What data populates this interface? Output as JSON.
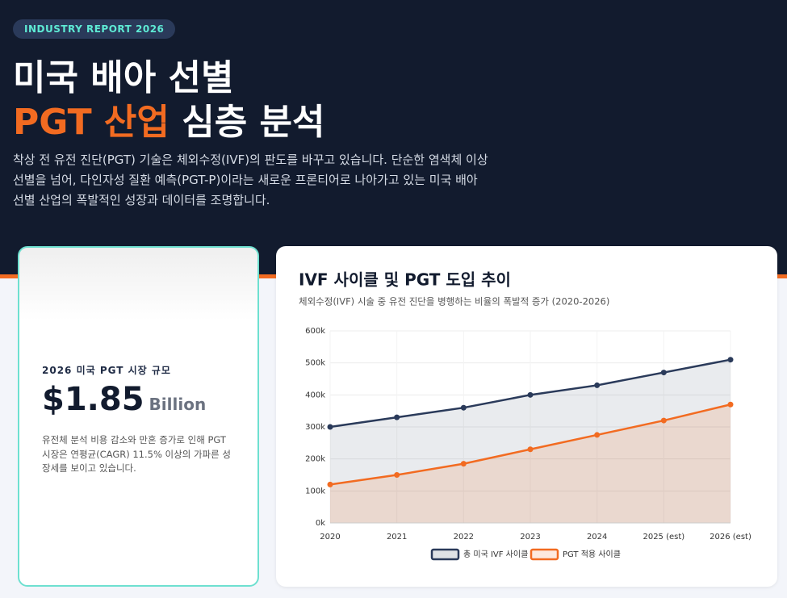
{
  "header": {
    "badge": "INDUSTRY REPORT 2026",
    "title_line1": "미국 배아 선별",
    "title_highlight": "PGT 산업",
    "title_rest": "심층 분석",
    "description": [
      "착상 전 유전 진단(PGT) 기술은 체외수정(IVF)의 판도를 바꾸고 있습니다. 단순한 염색체 이상",
      "선별을 넘어, 다인자성 질환 예측(PGT-P)이라는 새로운 프론티어로 나아가고 있는 미국 배아",
      "선별 산업의 폭발적인 성장과 데이터를 조명합니다."
    ]
  },
  "stat_card": {
    "label": "2026 미국 PGT 시장 규모",
    "value": "$1.85",
    "unit": "Billion",
    "description": [
      "유전체 분석 비용 감소와 만혼 증가로 인해 PGT",
      "시장은 연평균(CAGR) 11.5% 이상의 가파른 성",
      "장세를 보이고 있습니다."
    ]
  },
  "chart_data": {
    "type": "area",
    "title": "IVF 사이클 및 PGT 도입 추이",
    "subtitle": "체외수정(IVF) 시술 중 유전 진단을 병행하는 비율의 폭발적 증가 (2020-2026)",
    "categories": [
      "2020",
      "2021",
      "2022",
      "2023",
      "2024",
      "2025 (est)",
      "2026 (est)"
    ],
    "series": [
      {
        "name": "총 미국 IVF 사이클",
        "color": "#2a3a5a",
        "values": [
          300000,
          330000,
          360000,
          400000,
          430000,
          470000,
          510000
        ]
      },
      {
        "name": "PGT 적용 사이클",
        "color": "#f26b21",
        "values": [
          120000,
          150000,
          185000,
          230000,
          275000,
          320000,
          370000
        ]
      }
    ],
    "ylim": [
      0,
      600000
    ],
    "yticks": [
      {
        "value": 0,
        "label": "0k"
      },
      {
        "value": 100000,
        "label": "100k"
      },
      {
        "value": 200000,
        "label": "200k"
      },
      {
        "value": 300000,
        "label": "300k"
      },
      {
        "value": 400000,
        "label": "400k"
      },
      {
        "value": 500000,
        "label": "500k"
      },
      {
        "value": 600000,
        "label": "600k"
      }
    ],
    "grid": true,
    "legend": "bottom"
  }
}
